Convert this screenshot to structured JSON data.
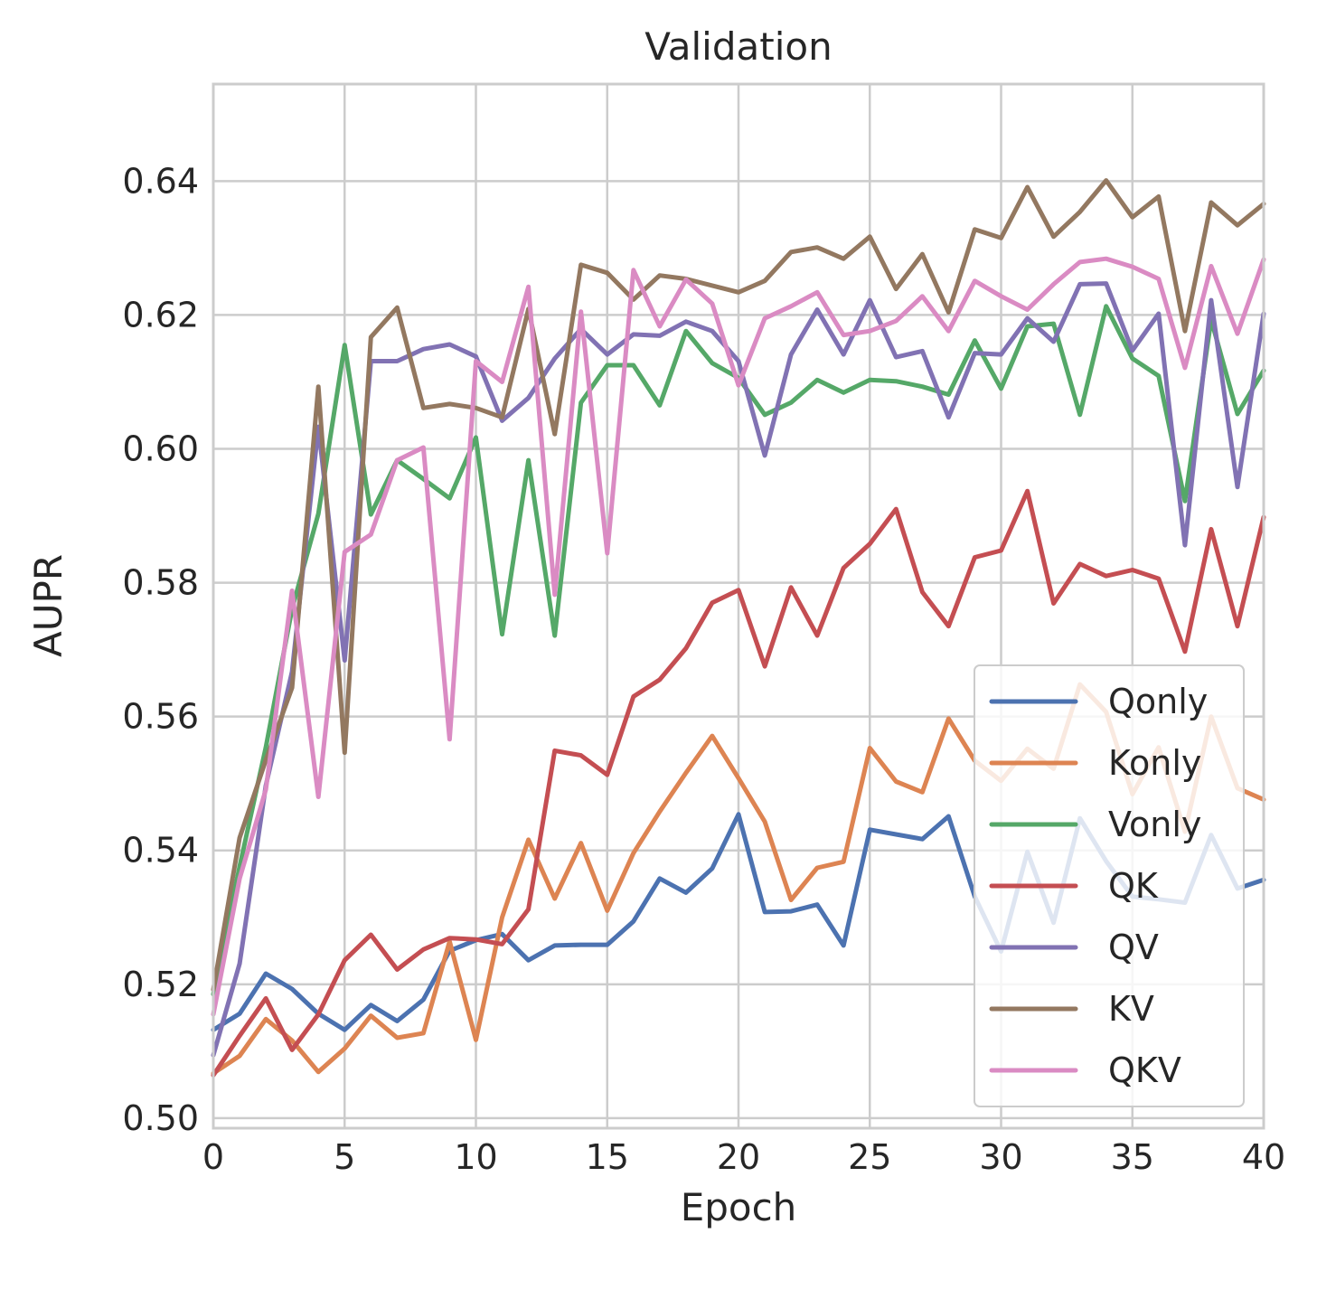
{
  "chart_data": {
    "type": "line",
    "title": "Validation",
    "xlabel": "Epoch",
    "ylabel": "AUPR",
    "xlim": [
      0,
      40
    ],
    "ylim": [
      0.4985,
      0.6545
    ],
    "xticks": [
      0,
      5,
      10,
      15,
      20,
      25,
      30,
      35,
      40
    ],
    "xtick_labels": [
      "0",
      "5",
      "10",
      "15",
      "20",
      "25",
      "30",
      "35",
      "40"
    ],
    "yticks": [
      0.5,
      0.52,
      0.54,
      0.56,
      0.58,
      0.6,
      0.62,
      0.64
    ],
    "ytick_labels": [
      "0.50",
      "0.52",
      "0.54",
      "0.56",
      "0.58",
      "0.60",
      "0.62",
      "0.64"
    ],
    "grid": true,
    "legend_position": "lower-right",
    "x": [
      0,
      1,
      2,
      3,
      4,
      5,
      6,
      7,
      8,
      9,
      10,
      11,
      12,
      13,
      14,
      15,
      16,
      17,
      18,
      19,
      20,
      21,
      22,
      23,
      24,
      25,
      26,
      27,
      28,
      29,
      30,
      31,
      32,
      33,
      34,
      35,
      36,
      37,
      38,
      39,
      40
    ],
    "series": [
      {
        "name": "Qonly",
        "color": "#4c72b0",
        "values": [
          0.5132,
          0.5156,
          0.5216,
          0.5193,
          0.5156,
          0.5132,
          0.5169,
          0.5145,
          0.5177,
          0.525,
          0.5266,
          0.5275,
          0.5236,
          0.5258,
          0.5259,
          0.5259,
          0.5294,
          0.5358,
          0.5337,
          0.5373,
          0.5454,
          0.5308,
          0.5309,
          0.5319,
          0.5258,
          0.5431,
          0.5424,
          0.5417,
          0.5451,
          0.5331,
          0.5249,
          0.5398,
          0.5292,
          0.5448,
          0.5384,
          0.5331,
          0.5327,
          0.5322,
          0.5423,
          0.5343,
          0.5356
        ]
      },
      {
        "name": "Konly",
        "color": "#dd8452",
        "values": [
          0.5067,
          0.5093,
          0.5148,
          0.5116,
          0.5069,
          0.5104,
          0.5153,
          0.512,
          0.5127,
          0.5264,
          0.5117,
          0.53,
          0.5416,
          0.5328,
          0.5411,
          0.531,
          0.5396,
          0.5458,
          0.5516,
          0.5571,
          0.5508,
          0.5443,
          0.5326,
          0.5374,
          0.5383,
          0.5553,
          0.5503,
          0.5487,
          0.5597,
          0.5534,
          0.5504,
          0.5552,
          0.5522,
          0.5648,
          0.5607,
          0.5484,
          0.5554,
          0.5428,
          0.56,
          0.5493,
          0.5476
        ]
      },
      {
        "name": "Vonly",
        "color": "#55a868",
        "values": [
          0.5185,
          0.5376,
          0.5554,
          0.5761,
          0.5903,
          0.6155,
          0.5902,
          0.5983,
          0.5955,
          0.5926,
          0.6017,
          0.5723,
          0.5983,
          0.5721,
          0.6069,
          0.6125,
          0.6125,
          0.6065,
          0.6176,
          0.6128,
          0.6106,
          0.6051,
          0.6069,
          0.6103,
          0.6084,
          0.6103,
          0.6101,
          0.6093,
          0.6081,
          0.6162,
          0.609,
          0.6183,
          0.6187,
          0.6051,
          0.6213,
          0.6135,
          0.6109,
          0.5922,
          0.6193,
          0.6052,
          0.6117
        ]
      },
      {
        "name": "QK",
        "color": "#c44e52",
        "values": [
          0.5064,
          0.5123,
          0.5179,
          0.5102,
          0.5155,
          0.5236,
          0.5274,
          0.5222,
          0.5252,
          0.5269,
          0.5267,
          0.526,
          0.5312,
          0.5549,
          0.5542,
          0.5513,
          0.563,
          0.5655,
          0.5702,
          0.577,
          0.5789,
          0.5675,
          0.5793,
          0.5721,
          0.5822,
          0.5858,
          0.591,
          0.5786,
          0.5735,
          0.5838,
          0.5848,
          0.5937,
          0.5769,
          0.5828,
          0.581,
          0.5819,
          0.5806,
          0.5697,
          0.588,
          0.5735,
          0.5898
        ]
      },
      {
        "name": "QV",
        "color": "#8172b3",
        "values": [
          0.5094,
          0.5231,
          0.5497,
          0.5667,
          0.6033,
          0.5684,
          0.6131,
          0.6131,
          0.6149,
          0.6156,
          0.6138,
          0.6042,
          0.6076,
          0.6135,
          0.6179,
          0.6141,
          0.6171,
          0.6169,
          0.619,
          0.6176,
          0.6131,
          0.599,
          0.6141,
          0.6208,
          0.6141,
          0.6222,
          0.6137,
          0.6146,
          0.6047,
          0.6143,
          0.6141,
          0.6195,
          0.616,
          0.6246,
          0.6247,
          0.6147,
          0.6202,
          0.5856,
          0.6222,
          0.5943,
          0.6202
        ]
      },
      {
        "name": "KV",
        "color": "#937860",
        "values": [
          0.5192,
          0.5419,
          0.5535,
          0.5643,
          0.6093,
          0.5546,
          0.6167,
          0.6211,
          0.6061,
          0.6067,
          0.6061,
          0.6047,
          0.6209,
          0.6022,
          0.6275,
          0.6263,
          0.6223,
          0.6259,
          0.6254,
          0.6244,
          0.6234,
          0.6251,
          0.6294,
          0.6301,
          0.6284,
          0.6317,
          0.6239,
          0.6291,
          0.6204,
          0.6328,
          0.6315,
          0.6391,
          0.6317,
          0.6354,
          0.6401,
          0.6346,
          0.6377,
          0.6176,
          0.6368,
          0.6334,
          0.6366
        ]
      },
      {
        "name": "QKV",
        "color": "#da8bc3",
        "values": [
          0.5155,
          0.5358,
          0.5491,
          0.5788,
          0.548,
          0.5846,
          0.5872,
          0.5983,
          0.6002,
          0.5566,
          0.6131,
          0.61,
          0.6242,
          0.5782,
          0.6205,
          0.5844,
          0.6267,
          0.6183,
          0.6253,
          0.6217,
          0.6095,
          0.6195,
          0.6213,
          0.6234,
          0.617,
          0.6176,
          0.6191,
          0.6228,
          0.6176,
          0.6251,
          0.6228,
          0.6208,
          0.6246,
          0.6279,
          0.6284,
          0.6272,
          0.6254,
          0.6121,
          0.6273,
          0.6172,
          0.6283
        ]
      }
    ]
  }
}
